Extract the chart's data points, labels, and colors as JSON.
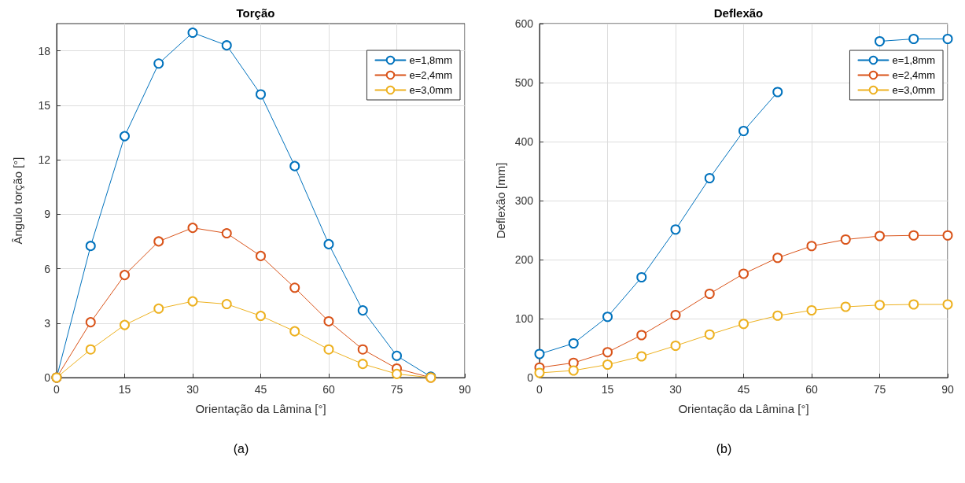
{
  "chart_data": [
    {
      "type": "line",
      "title": "Torção",
      "xlabel": "Orientação da Lâmina [°]",
      "ylabel": "Ângulo torção [°]",
      "x": [
        0,
        7.5,
        15,
        22.5,
        30,
        37.5,
        45,
        52.5,
        60,
        67.5,
        75,
        82.5
      ],
      "series": [
        {
          "name": "e=1,8mm",
          "color": "#0072bd",
          "values": [
            0,
            7.25,
            13.3,
            17.3,
            19.0,
            18.3,
            15.6,
            11.65,
            7.35,
            3.7,
            1.2,
            0.05
          ]
        },
        {
          "name": "e=2,4mm",
          "color": "#d95319",
          "values": [
            0,
            3.05,
            5.65,
            7.5,
            8.25,
            7.95,
            6.7,
            4.95,
            3.1,
            1.55,
            0.5,
            0
          ]
        },
        {
          "name": "e=3,0mm",
          "color": "#edb120",
          "values": [
            0,
            1.55,
            2.9,
            3.8,
            4.2,
            4.05,
            3.4,
            2.55,
            1.55,
            0.75,
            0.2,
            0
          ]
        }
      ],
      "xlim": [
        0,
        90
      ],
      "xticks": [
        0,
        15,
        30,
        45,
        60,
        75,
        90
      ],
      "ylim": [
        0,
        19.5
      ],
      "yticks": [
        0,
        3,
        6,
        9,
        12,
        15,
        18
      ],
      "grid": true,
      "legend": "top right",
      "marker": "circle",
      "line_style": "solid",
      "annotations": [
        "(a)"
      ]
    },
    {
      "type": "line",
      "title": "Deflexão",
      "xlabel": "Orientação da Lâmina [°]",
      "ylabel": "Deflexão [mm]",
      "x": [
        0,
        7.5,
        15,
        22.5,
        30,
        37.5,
        45,
        52.5,
        60,
        67.5,
        75,
        82.5,
        90
      ],
      "series": [
        {
          "name": "e=1,8mm",
          "color": "#0072bd",
          "values": [
            40,
            58,
            103,
            170,
            251,
            338,
            418,
            484,
            null,
            null,
            570,
            574,
            574
          ]
        },
        {
          "name": "e=2,4mm",
          "color": "#d95319",
          "values": [
            17,
            25,
            43,
            72,
            106,
            142,
            176,
            203,
            223,
            234,
            240,
            241,
            241
          ]
        },
        {
          "name": "e=3,0mm",
          "color": "#edb120",
          "values": [
            8,
            12,
            22,
            36,
            54,
            73,
            91,
            105,
            114,
            120,
            123,
            124,
            124
          ]
        }
      ],
      "xlim": [
        0,
        90
      ],
      "xticks": [
        0,
        15,
        30,
        45,
        60,
        75,
        90
      ],
      "ylim": [
        0,
        600
      ],
      "yticks": [
        0,
        100,
        200,
        300,
        400,
        500,
        600
      ],
      "grid": true,
      "legend": "top right",
      "marker": "circle",
      "line_style": "solid",
      "annotations": [
        "(b)"
      ]
    }
  ]
}
